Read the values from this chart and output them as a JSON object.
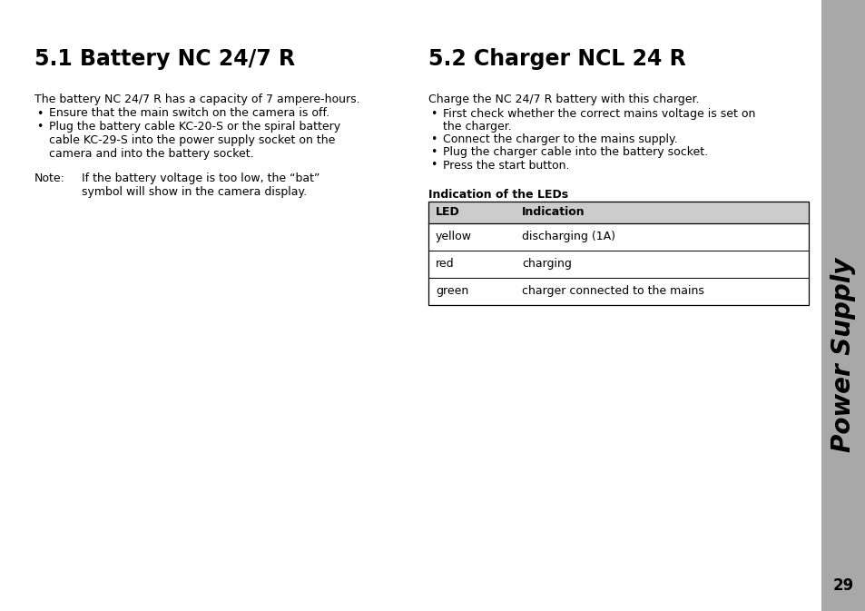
{
  "page_bg": "#ffffff",
  "sidebar_bg": "#a8a8a8",
  "sidebar_text": "Power Supply",
  "sidebar_page_num": "29",
  "left_title": "5.1 Battery NC 24/7 R",
  "left_body": "The battery NC 24/7 R has a capacity of 7 ampere-hours.",
  "left_bullets": [
    "Ensure that the main switch on the camera is off.",
    "Plug the battery cable KC-20-S or the spiral battery\ncable KC-29-S into the power supply socket on the\ncamera and into the battery socket."
  ],
  "left_note_label": "Note:",
  "left_note_text": "If the battery voltage is too low, the “bat”\nsymbol will show in the camera display.",
  "right_title": "5.2 Charger NCL 24 R",
  "right_body": "Charge the NC 24/7 R battery with this charger.",
  "right_bullets": [
    "First check whether the correct mains voltage is set on\nthe charger.",
    "Connect the charger to the mains supply.",
    "Plug the charger cable into the battery socket.",
    "Press the start button."
  ],
  "table_section_title": "Indication of the LEDs",
  "table_headers": [
    "LED",
    "Indication"
  ],
  "table_rows": [
    [
      "yellow",
      "discharging (1A)"
    ],
    [
      "red",
      "charging"
    ],
    [
      "green",
      "charger connected to the mains"
    ]
  ],
  "table_header_bg": "#cccccc",
  "body_fontsize": 9.0,
  "title_fontsize": 17,
  "section_title_fontsize": 9.0,
  "sidebar_fontsize": 20,
  "pagenum_fontsize": 12
}
